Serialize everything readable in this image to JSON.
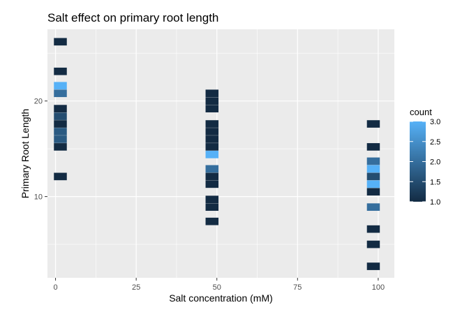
{
  "chart_data": {
    "type": "heatmap",
    "title": "Salt effect on primary root length",
    "xlabel": "Salt concentration (mM)",
    "ylabel": "Primary Root Length",
    "xlim": [
      -2.5,
      105
    ],
    "ylim": [
      1.5,
      27.5
    ],
    "x_ticks": [
      0,
      25,
      50,
      75,
      100
    ],
    "x_tick_labels": [
      "0",
      "25",
      "50",
      "75",
      "100"
    ],
    "y_ticks": [
      10,
      20
    ],
    "y_tick_labels": [
      "10",
      "20"
    ],
    "grid": true,
    "legend": {
      "title": "count",
      "position": "right",
      "min": 1.0,
      "max": 3.0,
      "ticks": [
        1.0,
        1.5,
        2.0,
        2.5,
        3.0
      ],
      "tick_labels": [
        "1.0",
        "1.5",
        "2.0",
        "2.5",
        "3.0"
      ],
      "low_color": "#132B43",
      "high_color": "#56B1F7"
    },
    "bin_width": 4.0,
    "bin_height": 0.78,
    "bins": [
      {
        "x": 1.5,
        "y": 26.2,
        "count": 1
      },
      {
        "x": 1.5,
        "y": 23.1,
        "count": 1
      },
      {
        "x": 1.5,
        "y": 21.6,
        "count": 3
      },
      {
        "x": 1.5,
        "y": 20.8,
        "count": 2
      },
      {
        "x": 1.5,
        "y": 19.2,
        "count": 1
      },
      {
        "x": 1.5,
        "y": 18.4,
        "count": 1.5
      },
      {
        "x": 1.5,
        "y": 17.6,
        "count": 1
      },
      {
        "x": 1.5,
        "y": 16.8,
        "count": 1.7
      },
      {
        "x": 1.5,
        "y": 16.0,
        "count": 1.7
      },
      {
        "x": 1.5,
        "y": 15.2,
        "count": 1
      },
      {
        "x": 1.5,
        "y": 12.1,
        "count": 1
      },
      {
        "x": 48.5,
        "y": 20.8,
        "count": 1
      },
      {
        "x": 48.5,
        "y": 20.0,
        "count": 1
      },
      {
        "x": 48.5,
        "y": 19.2,
        "count": 1
      },
      {
        "x": 48.5,
        "y": 17.6,
        "count": 1
      },
      {
        "x": 48.5,
        "y": 16.8,
        "count": 1
      },
      {
        "x": 48.5,
        "y": 16.0,
        "count": 1
      },
      {
        "x": 48.5,
        "y": 15.2,
        "count": 1
      },
      {
        "x": 48.5,
        "y": 14.4,
        "count": 3
      },
      {
        "x": 48.5,
        "y": 12.9,
        "count": 2
      },
      {
        "x": 48.5,
        "y": 12.1,
        "count": 1
      },
      {
        "x": 48.5,
        "y": 11.3,
        "count": 1
      },
      {
        "x": 48.5,
        "y": 9.7,
        "count": 1
      },
      {
        "x": 48.5,
        "y": 8.9,
        "count": 1
      },
      {
        "x": 48.5,
        "y": 7.4,
        "count": 1
      },
      {
        "x": 98.5,
        "y": 17.6,
        "count": 1
      },
      {
        "x": 98.5,
        "y": 15.2,
        "count": 1
      },
      {
        "x": 98.5,
        "y": 13.7,
        "count": 2
      },
      {
        "x": 98.5,
        "y": 12.9,
        "count": 3
      },
      {
        "x": 98.5,
        "y": 12.1,
        "count": 1.5
      },
      {
        "x": 98.5,
        "y": 11.3,
        "count": 3
      },
      {
        "x": 98.5,
        "y": 10.5,
        "count": 1
      },
      {
        "x": 98.5,
        "y": 8.9,
        "count": 2
      },
      {
        "x": 98.5,
        "y": 6.6,
        "count": 1
      },
      {
        "x": 98.5,
        "y": 5.0,
        "count": 1
      },
      {
        "x": 98.5,
        "y": 2.7,
        "count": 1
      }
    ]
  }
}
